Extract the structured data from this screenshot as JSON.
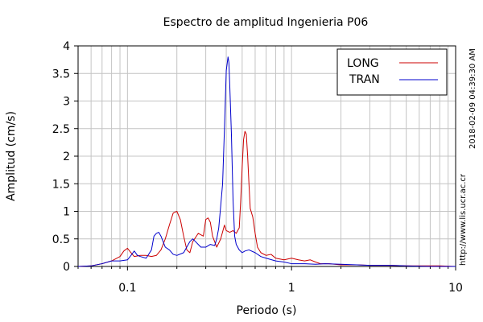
{
  "chart_data": {
    "type": "line",
    "title": "Espectro de amplitud Ingenieria P06",
    "xlabel": "Periodo (s)",
    "ylabel": "Amplitud (cm/s)",
    "xscale": "log",
    "xlim": [
      0.05,
      10
    ],
    "ylim": [
      0,
      4
    ],
    "x_ticks": [
      0.1,
      1,
      10
    ],
    "x_tick_labels": [
      "0.1",
      "1",
      "10"
    ],
    "y_ticks": [
      0,
      0.5,
      1,
      1.5,
      2,
      2.5,
      3,
      3.5,
      4
    ],
    "y_tick_labels": [
      "0",
      "0.5",
      "1",
      "1.5",
      "2",
      "2.5",
      "3",
      "3.5",
      "4"
    ],
    "grid": true,
    "legend_position": "top-right",
    "series": [
      {
        "name": "LONG",
        "color": "#cc0000",
        "x": [
          0.05,
          0.06,
          0.07,
          0.08,
          0.09,
          0.095,
          0.1,
          0.105,
          0.11,
          0.12,
          0.13,
          0.14,
          0.15,
          0.16,
          0.17,
          0.18,
          0.19,
          0.2,
          0.21,
          0.22,
          0.23,
          0.24,
          0.25,
          0.27,
          0.29,
          0.3,
          0.31,
          0.32,
          0.33,
          0.35,
          0.37,
          0.39,
          0.4,
          0.42,
          0.44,
          0.46,
          0.48,
          0.49,
          0.5,
          0.51,
          0.52,
          0.53,
          0.54,
          0.55,
          0.56,
          0.58,
          0.6,
          0.62,
          0.65,
          0.7,
          0.75,
          0.8,
          0.9,
          1.0,
          1.1,
          1.2,
          1.3,
          1.4,
          1.5,
          1.7,
          2.0,
          2.5,
          3,
          4,
          5,
          6,
          8,
          10
        ],
        "y": [
          0,
          0.01,
          0.05,
          0.1,
          0.18,
          0.28,
          0.33,
          0.25,
          0.18,
          0.2,
          0.2,
          0.18,
          0.2,
          0.3,
          0.5,
          0.75,
          0.97,
          1.0,
          0.85,
          0.55,
          0.3,
          0.25,
          0.45,
          0.6,
          0.55,
          0.85,
          0.88,
          0.8,
          0.55,
          0.35,
          0.5,
          0.75,
          0.65,
          0.62,
          0.65,
          0.6,
          0.7,
          1.2,
          1.8,
          2.3,
          2.45,
          2.4,
          2.0,
          1.5,
          1.05,
          0.9,
          0.6,
          0.35,
          0.25,
          0.2,
          0.22,
          0.15,
          0.12,
          0.15,
          0.12,
          0.1,
          0.12,
          0.08,
          0.05,
          0.05,
          0.03,
          0.03,
          0.02,
          0.02,
          0.01,
          0.01,
          0.01,
          0.0
        ]
      },
      {
        "name": "TRAN",
        "color": "#0000cc",
        "x": [
          0.05,
          0.06,
          0.07,
          0.08,
          0.09,
          0.1,
          0.105,
          0.11,
          0.115,
          0.12,
          0.13,
          0.14,
          0.145,
          0.15,
          0.155,
          0.16,
          0.17,
          0.18,
          0.19,
          0.2,
          0.22,
          0.24,
          0.25,
          0.26,
          0.28,
          0.3,
          0.32,
          0.34,
          0.35,
          0.36,
          0.37,
          0.38,
          0.39,
          0.4,
          0.41,
          0.415,
          0.42,
          0.43,
          0.44,
          0.45,
          0.46,
          0.48,
          0.5,
          0.52,
          0.55,
          0.6,
          0.65,
          0.7,
          0.8,
          0.9,
          1.0,
          1.2,
          1.4,
          1.6,
          2.0,
          2.5,
          3,
          4,
          5,
          7,
          10
        ],
        "y": [
          0,
          0.01,
          0.05,
          0.1,
          0.1,
          0.12,
          0.2,
          0.28,
          0.2,
          0.18,
          0.15,
          0.3,
          0.55,
          0.6,
          0.62,
          0.55,
          0.35,
          0.3,
          0.22,
          0.2,
          0.25,
          0.45,
          0.5,
          0.45,
          0.35,
          0.35,
          0.4,
          0.38,
          0.5,
          0.7,
          1.1,
          1.5,
          2.5,
          3.55,
          3.8,
          3.7,
          3.3,
          2.4,
          1.2,
          0.55,
          0.4,
          0.3,
          0.25,
          0.28,
          0.3,
          0.25,
          0.18,
          0.15,
          0.1,
          0.08,
          0.05,
          0.05,
          0.04,
          0.05,
          0.04,
          0.03,
          0.02,
          0.02,
          0.01,
          0.0,
          0.0
        ]
      }
    ]
  },
  "side_text": {
    "timestamp": "2018-02-09 04:39:30 AM",
    "url": "http://www.lis.ucr.ac.cr"
  }
}
